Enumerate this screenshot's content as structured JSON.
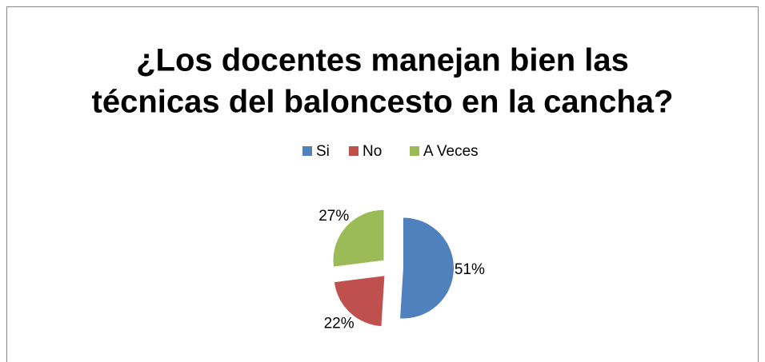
{
  "chart_data": {
    "type": "pie",
    "title": [
      "¿Los docentes manejan bien las",
      "técnicas del baloncesto en la cancha?"
    ],
    "categories": [
      "Si",
      "No",
      "A Veces"
    ],
    "values": [
      51,
      22,
      27
    ],
    "value_labels": [
      "51%",
      "22%",
      "27%"
    ],
    "colors": [
      "#4f81bd",
      "#c0504d",
      "#9bbb59"
    ],
    "legend": "top"
  }
}
